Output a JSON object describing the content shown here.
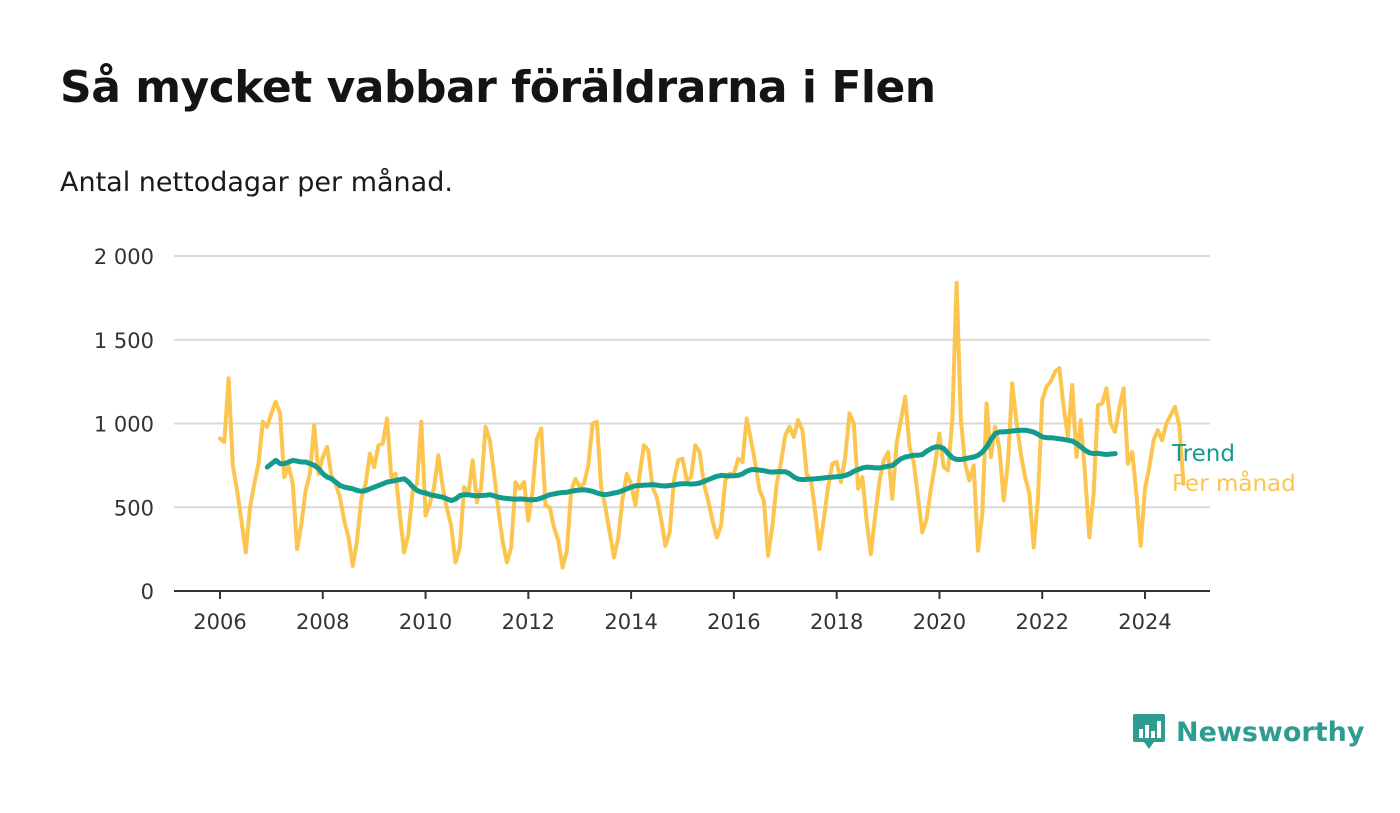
{
  "header": {
    "title": "Så mycket vabbar föräldrarna i Flen",
    "subtitle": "Antal nettodagar per månad."
  },
  "brand": {
    "name": "Newsworthy",
    "icon": "newsworthy-logo-icon",
    "color": "#2e9c90"
  },
  "chart_data": {
    "type": "line",
    "xlabel": "",
    "ylabel": "",
    "xlim": [
      2006,
      2025.2
    ],
    "ylim": [
      0,
      2000
    ],
    "x_ticks": [
      2006,
      2008,
      2010,
      2012,
      2014,
      2016,
      2018,
      2020,
      2022,
      2024
    ],
    "x_tick_labels": [
      "2006",
      "2008",
      "2010",
      "2012",
      "2014",
      "2016",
      "2018",
      "2020",
      "2022",
      "2024"
    ],
    "y_ticks": [
      0,
      500,
      1000,
      1500,
      2000
    ],
    "y_tick_labels": [
      "0",
      "500",
      "1 000",
      "1 500",
      "2 000"
    ],
    "grid": true,
    "legend": "inline-right",
    "series": [
      {
        "name": "Per månad",
        "color": "#fcc54f",
        "x_start": 2006.0,
        "x_step": 0.0833333,
        "values": [
          910,
          890,
          1270,
          750,
          600,
          420,
          230,
          500,
          640,
          760,
          1010,
          980,
          1060,
          1130,
          1060,
          680,
          750,
          640,
          250,
          400,
          600,
          700,
          990,
          700,
          800,
          860,
          690,
          640,
          560,
          420,
          320,
          150,
          300,
          550,
          640,
          820,
          740,
          870,
          880,
          1030,
          680,
          700,
          450,
          230,
          340,
          600,
          640,
          1010,
          450,
          520,
          620,
          810,
          620,
          490,
          390,
          170,
          260,
          620,
          580,
          780,
          530,
          620,
          980,
          900,
          700,
          480,
          300,
          170,
          260,
          650,
          610,
          650,
          420,
          600,
          910,
          970,
          510,
          500,
          380,
          300,
          140,
          240,
          600,
          670,
          620,
          640,
          750,
          1000,
          1010,
          620,
          500,
          350,
          200,
          320,
          550,
          700,
          640,
          510,
          700,
          870,
          840,
          620,
          560,
          430,
          270,
          350,
          660,
          780,
          790,
          660,
          680,
          870,
          830,
          640,
          540,
          420,
          320,
          390,
          660,
          700,
          700,
          790,
          770,
          1030,
          900,
          760,
          600,
          540,
          210,
          390,
          640,
          770,
          930,
          980,
          920,
          1020,
          960,
          700,
          660,
          470,
          250,
          430,
          620,
          760,
          770,
          650,
          800,
          1060,
          1000,
          610,
          680,
          420,
          220,
          450,
          660,
          780,
          830,
          550,
          880,
          1020,
          1160,
          860,
          770,
          560,
          350,
          430,
          610,
          760,
          940,
          740,
          720,
          1020,
          1840,
          1020,
          760,
          660,
          750,
          240,
          460,
          1120,
          800,
          980,
          850,
          540,
          770,
          1240,
          1010,
          820,
          680,
          580,
          260,
          550,
          1140,
          1220,
          1250,
          1310,
          1330,
          1100,
          920,
          1230,
          800,
          1020,
          700,
          320,
          580,
          1110,
          1120,
          1210,
          1000,
          950,
          1090,
          1210,
          760,
          830,
          580,
          270,
          610,
          740,
          900,
          960,
          900,
          1000,
          1050,
          1100,
          990,
          640
        ]
      },
      {
        "name": "Trend",
        "color": "#139b8e",
        "x_start": 2006.92,
        "x_step": 0.0833333,
        "values": [
          740,
          760,
          780,
          760,
          760,
          770,
          780,
          775,
          770,
          770,
          760,
          750,
          730,
          700,
          680,
          670,
          650,
          630,
          620,
          615,
          610,
          600,
          595,
          600,
          610,
          620,
          630,
          640,
          650,
          655,
          660,
          665,
          670,
          650,
          620,
          600,
          590,
          585,
          575,
          570,
          565,
          560,
          550,
          540,
          550,
          570,
          575,
          575,
          570,
          568,
          570,
          572,
          575,
          568,
          560,
          555,
          552,
          550,
          548,
          550,
          548,
          545,
          545,
          547,
          555,
          565,
          575,
          580,
          585,
          588,
          590,
          595,
          600,
          603,
          605,
          600,
          595,
          585,
          578,
          575,
          580,
          585,
          590,
          600,
          610,
          620,
          628,
          630,
          632,
          633,
          635,
          632,
          628,
          627,
          630,
          633,
          638,
          640,
          640,
          638,
          640,
          645,
          655,
          665,
          675,
          685,
          690,
          688,
          687,
          688,
          690,
          700,
          715,
          725,
          725,
          722,
          718,
          712,
          710,
          712,
          713,
          712,
          700,
          680,
          668,
          665,
          667,
          668,
          670,
          672,
          675,
          678,
          680,
          682,
          685,
          690,
          700,
          715,
          725,
          735,
          740,
          738,
          735,
          735,
          740,
          745,
          750,
          770,
          790,
          800,
          805,
          810,
          810,
          815,
          835,
          850,
          860,
          860,
          850,
          820,
          795,
          785,
          785,
          790,
          795,
          800,
          810,
          830,
          860,
          905,
          940,
          950,
          950,
          952,
          955,
          958,
          960,
          960,
          955,
          948,
          935,
          920,
          915,
          915,
          912,
          908,
          905,
          900,
          895,
          880,
          860,
          840,
          825,
          820,
          822,
          818,
          815,
          818,
          820
        ]
      }
    ]
  }
}
